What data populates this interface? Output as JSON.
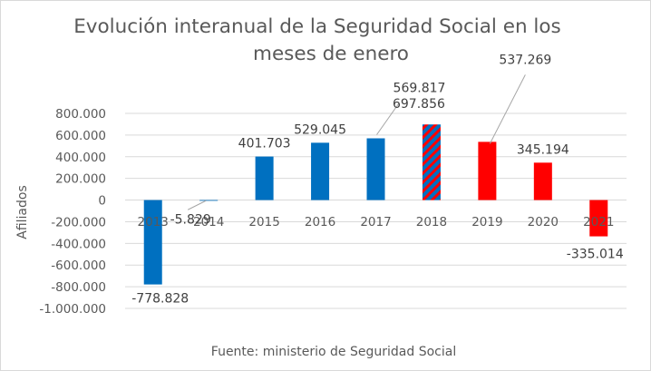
{
  "chart_data": {
    "type": "bar",
    "title_line1": "Evolución interanual de la Seguridad Social en los",
    "title_line2": "meses de enero",
    "ylabel": "Afiliados",
    "source": "Fuente: ministerio de Seguridad Social",
    "ylim": [
      -1000000,
      800000
    ],
    "yticks": [
      800000,
      600000,
      400000,
      200000,
      0,
      -200000,
      -400000,
      -600000,
      -800000,
      -1000000
    ],
    "ytick_labels": [
      "800.000",
      "600.000",
      "400.000",
      "200.000",
      "0",
      "-200.000",
      "-400.000",
      "-600.000",
      "-800.000",
      "-1.000.000"
    ],
    "grid": true,
    "categories": [
      "2013",
      "2014",
      "2015",
      "2016",
      "2017",
      "2018",
      "2019",
      "2020",
      "2021"
    ],
    "values": [
      -778828,
      -5829,
      401703,
      529045,
      569817,
      697856,
      537269,
      345194,
      -335014
    ],
    "value_labels": [
      "-778.828",
      "-5.829",
      "401.703",
      "529.045",
      "569.817",
      "697.856",
      "537.269",
      "345.194",
      "-335.014"
    ],
    "bar_styles": [
      "blue",
      "blue",
      "blue",
      "blue",
      "blue",
      "hatched",
      "red",
      "red",
      "red"
    ],
    "colors": {
      "blue": "#0070c0",
      "red": "#ff0000",
      "hatch_base": "#0070c0",
      "hatch_stripe": "#ff0000",
      "grid": "#d9d9d9",
      "text": "#595959",
      "leader": "#a6a6a6"
    }
  }
}
